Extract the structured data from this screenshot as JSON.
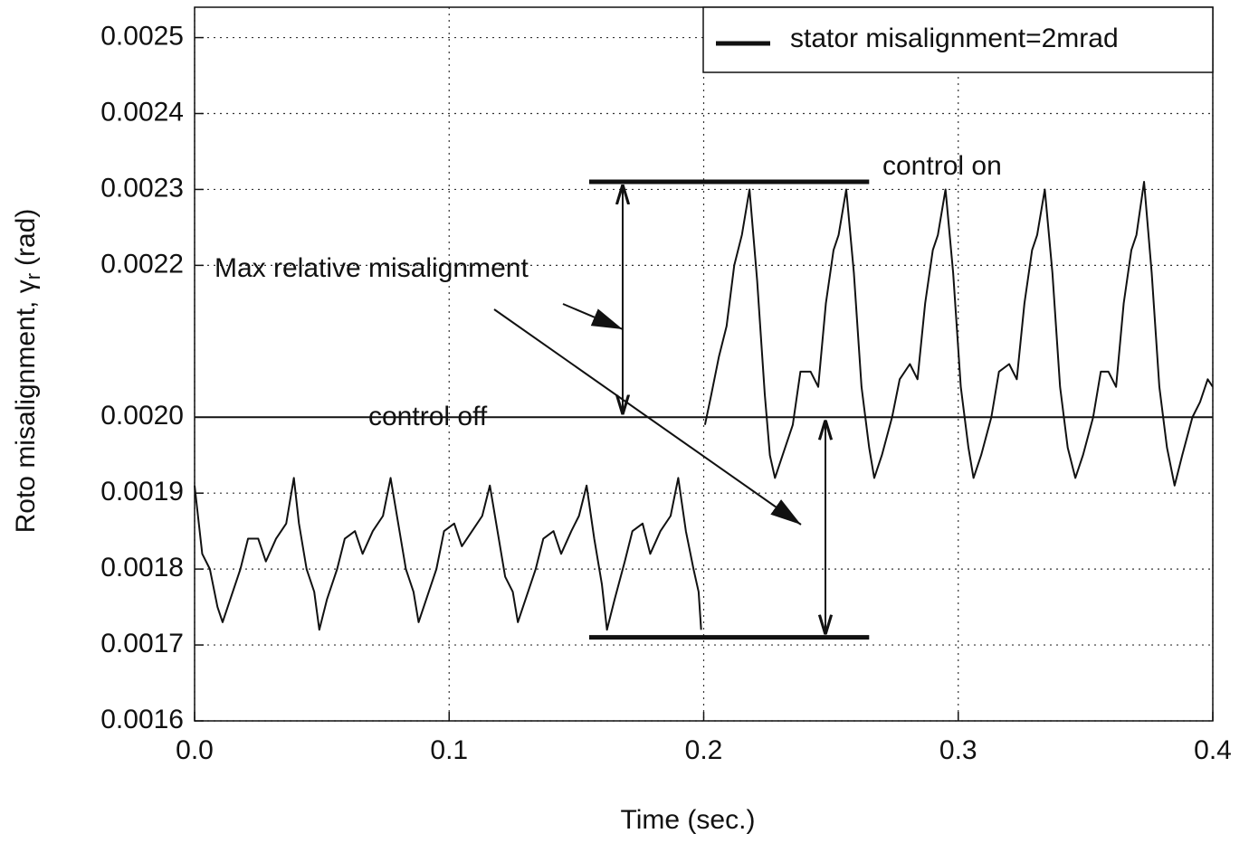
{
  "chart_data": {
    "type": "line",
    "xlabel": "Time (sec.)",
    "ylabel": "Roto misalignment, γ",
    "ylabel_sub": "r",
    "ylabel_unit": "(rad)",
    "xlim": [
      0,
      0.4
    ],
    "xticks": [
      {
        "value": 0,
        "label": "0.0"
      },
      0.1,
      0.2,
      0.3,
      0.4
    ],
    "ylim": [
      0.0016,
      0.00254
    ],
    "yticks": [
      0.0025,
      0.0024,
      0.0023,
      0.0022,
      {
        "value": 0.002,
        "label": "0.0020"
      },
      0.0019,
      0.0018,
      0.0017,
      0.0016
    ],
    "grid": true,
    "legend": "upper right",
    "reference_line": 0.002,
    "bounds": {
      "x": [
        0.155,
        0.265
      ],
      "values": [
        0.00231,
        0.00171
      ]
    },
    "annotations": [
      "control on",
      "control off",
      "Max relative misalignment"
    ],
    "x": [
      0,
      0.003,
      0.006,
      0.009,
      0.011,
      0.014,
      0.018,
      0.021,
      0.025,
      0.028,
      0.032,
      0.036,
      0.039,
      0.041,
      0.044,
      0.047,
      0.049,
      0.052,
      0.056,
      0.059,
      0.063,
      0.066,
      0.07,
      0.074,
      0.077,
      0.08,
      0.083,
      0.086,
      0.088,
      0.091,
      0.095,
      0.098,
      0.102,
      0.105,
      0.109,
      0.113,
      0.116,
      0.119,
      0.122,
      0.125,
      0.127,
      0.13,
      0.134,
      0.137,
      0.141,
      0.144,
      0.148,
      0.151,
      0.154,
      0.157,
      0.16,
      0.162,
      0.165,
      0.169,
      0.172,
      0.176,
      0.179,
      0.183,
      0.187,
      0.19,
      0.193,
      0.196,
      0.198,
      0.199,
      0.2,
      0.2005,
      0.203,
      0.206,
      0.209,
      0.212,
      0.215,
      0.218,
      0.221,
      0.224,
      0.226,
      0.228,
      0.231,
      0.235,
      0.238,
      0.242,
      0.245,
      0.248,
      0.251,
      0.253,
      0.256,
      0.259,
      0.262,
      0.265,
      0.267,
      0.27,
      0.274,
      0.277,
      0.281,
      0.284,
      0.287,
      0.29,
      0.292,
      0.295,
      0.298,
      0.301,
      0.304,
      0.306,
      0.309,
      0.313,
      0.316,
      0.32,
      0.323,
      0.326,
      0.329,
      0.331,
      0.334,
      0.337,
      0.34,
      0.343,
      0.346,
      0.349,
      0.353,
      0.356,
      0.359,
      0.362,
      0.365,
      0.368,
      0.37,
      0.373,
      0.376,
      0.379,
      0.382,
      0.385,
      0.388,
      0.392,
      0.395,
      0.398,
      0.4
    ],
    "series": [
      {
        "name": "stator misalignment=2mrad",
        "color": "#111111",
        "values": [
          0.00191,
          0.00182,
          0.0018,
          0.00175,
          0.00173,
          0.00176,
          0.0018,
          0.00184,
          0.00184,
          0.00181,
          0.00184,
          0.00186,
          0.00192,
          0.00186,
          0.0018,
          0.00177,
          0.00172,
          0.00176,
          0.0018,
          0.00184,
          0.00185,
          0.00182,
          0.00185,
          0.00187,
          0.00192,
          0.00186,
          0.0018,
          0.00177,
          0.00173,
          0.00176,
          0.0018,
          0.00185,
          0.00186,
          0.00183,
          0.00185,
          0.00187,
          0.00191,
          0.00185,
          0.00179,
          0.00177,
          0.00173,
          0.00176,
          0.0018,
          0.00184,
          0.00185,
          0.00182,
          0.00185,
          0.00187,
          0.00191,
          0.00184,
          0.00178,
          0.00172,
          0.00176,
          0.00181,
          0.00185,
          0.00186,
          0.00182,
          0.00185,
          0.00187,
          0.00192,
          0.00185,
          0.0018,
          0.00177,
          0.00172,
          null,
          0.00199,
          0.00203,
          0.00208,
          0.00212,
          0.0022,
          0.00224,
          0.0023,
          0.00218,
          0.00203,
          0.00195,
          0.00192,
          0.00195,
          0.00199,
          0.00206,
          0.00206,
          0.00204,
          0.00215,
          0.00222,
          0.00224,
          0.0023,
          0.00219,
          0.00204,
          0.00196,
          0.00192,
          0.00195,
          0.002,
          0.00205,
          0.00207,
          0.00205,
          0.00215,
          0.00222,
          0.00224,
          0.0023,
          0.00219,
          0.00204,
          0.00196,
          0.00192,
          0.00195,
          0.002,
          0.00206,
          0.00207,
          0.00205,
          0.00215,
          0.00222,
          0.00224,
          0.0023,
          0.00219,
          0.00204,
          0.00196,
          0.00192,
          0.00195,
          0.002,
          0.00206,
          0.00206,
          0.00204,
          0.00215,
          0.00222,
          0.00224,
          0.00231,
          0.00219,
          0.00204,
          0.00196,
          0.00191,
          0.00195,
          0.002,
          0.00202,
          0.00205,
          0.00204
        ]
      }
    ]
  }
}
